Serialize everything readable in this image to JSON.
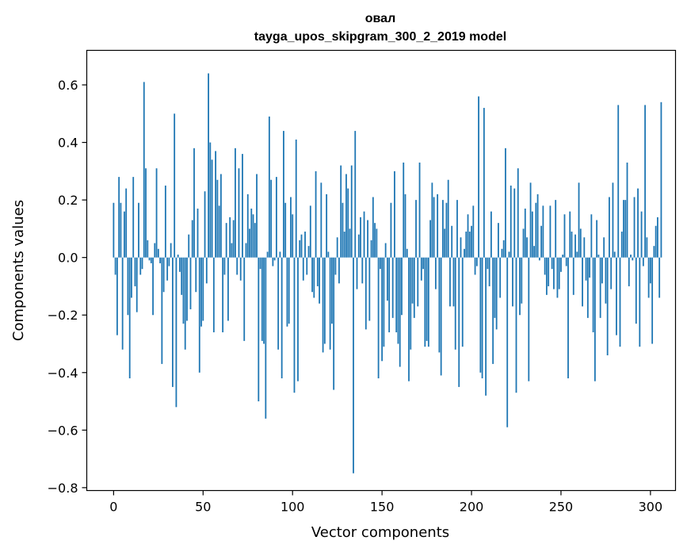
{
  "chart_data": {
    "type": "bar",
    "title": "овал",
    "subtitle": "tayga_upos_skipgram_300_2_2019 model",
    "xlabel": "Vector components",
    "ylabel": "Components values",
    "xlim": [
      -15,
      314
    ],
    "ylim": [
      -0.81,
      0.72
    ],
    "xticks": [
      0,
      50,
      100,
      150,
      200,
      250,
      300
    ],
    "yticks": [
      -0.8,
      -0.6,
      -0.4,
      -0.2,
      0.0,
      0.2,
      0.4,
      0.6
    ],
    "ytick_labels": [
      "−0.8",
      "−0.6",
      "−0.4",
      "−0.2",
      "0.0",
      "0.2",
      "0.4",
      "0.6"
    ],
    "color": "#1f77b4",
    "grid": false,
    "values": [
      0.19,
      -0.06,
      -0.27,
      0.28,
      0.19,
      -0.32,
      0.16,
      0.24,
      -0.2,
      -0.42,
      -0.14,
      0.28,
      -0.1,
      -0.19,
      0.19,
      -0.06,
      -0.04,
      0.61,
      0.31,
      0.06,
      -0.01,
      -0.02,
      -0.2,
      0.05,
      0.31,
      0.03,
      -0.02,
      -0.37,
      -0.12,
      0.25,
      -0.08,
      -0.03,
      0.05,
      -0.45,
      0.5,
      -0.52,
      0.01,
      -0.05,
      -0.13,
      -0.23,
      -0.32,
      -0.22,
      0.08,
      -0.18,
      0.13,
      0.38,
      -0.12,
      0.17,
      -0.4,
      -0.24,
      -0.22,
      0.23,
      -0.09,
      0.64,
      0.4,
      0.34,
      -0.26,
      0.37,
      0.27,
      0.18,
      0.29,
      -0.26,
      -0.06,
      0.12,
      -0.22,
      0.14,
      0.05,
      0.13,
      0.38,
      -0.06,
      0.31,
      -0.08,
      0.36,
      -0.29,
      0.05,
      0.22,
      0.1,
      0.17,
      0.15,
      0.12,
      0.29,
      -0.5,
      -0.04,
      -0.29,
      -0.3,
      -0.56,
      0.02,
      0.49,
      0.27,
      -0.03,
      -0.01,
      0.28,
      -0.32,
      0.02,
      -0.42,
      0.44,
      0.19,
      -0.24,
      -0.23,
      0.21,
      0.15,
      -0.47,
      0.41,
      -0.43,
      0.06,
      0.08,
      -0.08,
      0.09,
      -0.06,
      0.04,
      0.18,
      -0.12,
      -0.14,
      0.3,
      -0.1,
      -0.16,
      0.26,
      -0.33,
      -0.3,
      0.22,
      0.02,
      -0.32,
      -0.23,
      -0.46,
      -0.06,
      0.07,
      -0.09,
      0.32,
      0.19,
      0.09,
      0.29,
      0.24,
      0.1,
      0.32,
      -0.75,
      0.44,
      -0.11,
      0.08,
      0.14,
      -0.09,
      0.16,
      -0.25,
      0.13,
      -0.22,
      0.06,
      0.21,
      0.12,
      0.1,
      -0.42,
      -0.04,
      -0.36,
      -0.31,
      0.05,
      -0.15,
      -0.26,
      0.19,
      -0.21,
      0.3,
      -0.26,
      -0.3,
      -0.38,
      -0.2,
      0.33,
      0.22,
      0.03,
      -0.43,
      -0.32,
      -0.16,
      -0.21,
      0.2,
      -0.17,
      0.33,
      -0.08,
      -0.04,
      -0.31,
      -0.29,
      -0.31,
      0.13,
      0.26,
      0.21,
      -0.11,
      0.22,
      -0.33,
      -0.41,
      0.2,
      0.1,
      0.19,
      0.27,
      -0.17,
      0.11,
      -0.17,
      -0.32,
      0.2,
      -0.45,
      0.07,
      -0.31,
      0.03,
      0.09,
      0.15,
      0.09,
      0.11,
      0.18,
      -0.06,
      -0.03,
      0.56,
      -0.4,
      -0.42,
      0.52,
      -0.48,
      -0.04,
      -0.1,
      0.16,
      -0.37,
      -0.21,
      -0.25,
      0.12,
      -0.14,
      0.03,
      0.06,
      0.38,
      -0.59,
      0.02,
      0.25,
      -0.17,
      0.24,
      -0.47,
      0.31,
      -0.2,
      -0.16,
      0.1,
      0.17,
      0.07,
      -0.43,
      0.26,
      0.16,
      0.04,
      0.19,
      0.22,
      -0.01,
      0.11,
      0.18,
      -0.06,
      -0.13,
      -0.1,
      0.18,
      -0.04,
      -0.11,
      0.2,
      -0.14,
      -0.11,
      -0.05,
      0.01,
      0.15,
      -0.03,
      -0.42,
      0.16,
      0.09,
      -0.13,
      0.08,
      0.02,
      0.26,
      0.1,
      -0.17,
      0.07,
      -0.08,
      -0.21,
      -0.07,
      0.15,
      -0.26,
      -0.43,
      0.13,
      0.01,
      -0.21,
      -0.09,
      0.07,
      -0.16,
      -0.34,
      0.21,
      -0.11,
      0.26,
      0.02,
      -0.27,
      0.53,
      -0.31,
      0.09,
      0.2,
      0.2,
      0.33,
      -0.1,
      0.01,
      -0.01,
      0.21,
      -0.23,
      0.24,
      -0.31,
      0.16,
      -0.03,
      0.53,
      0.07,
      -0.14,
      -0.09,
      -0.3,
      0.04,
      0.11,
      0.14,
      -0.14,
      0.54
    ]
  }
}
